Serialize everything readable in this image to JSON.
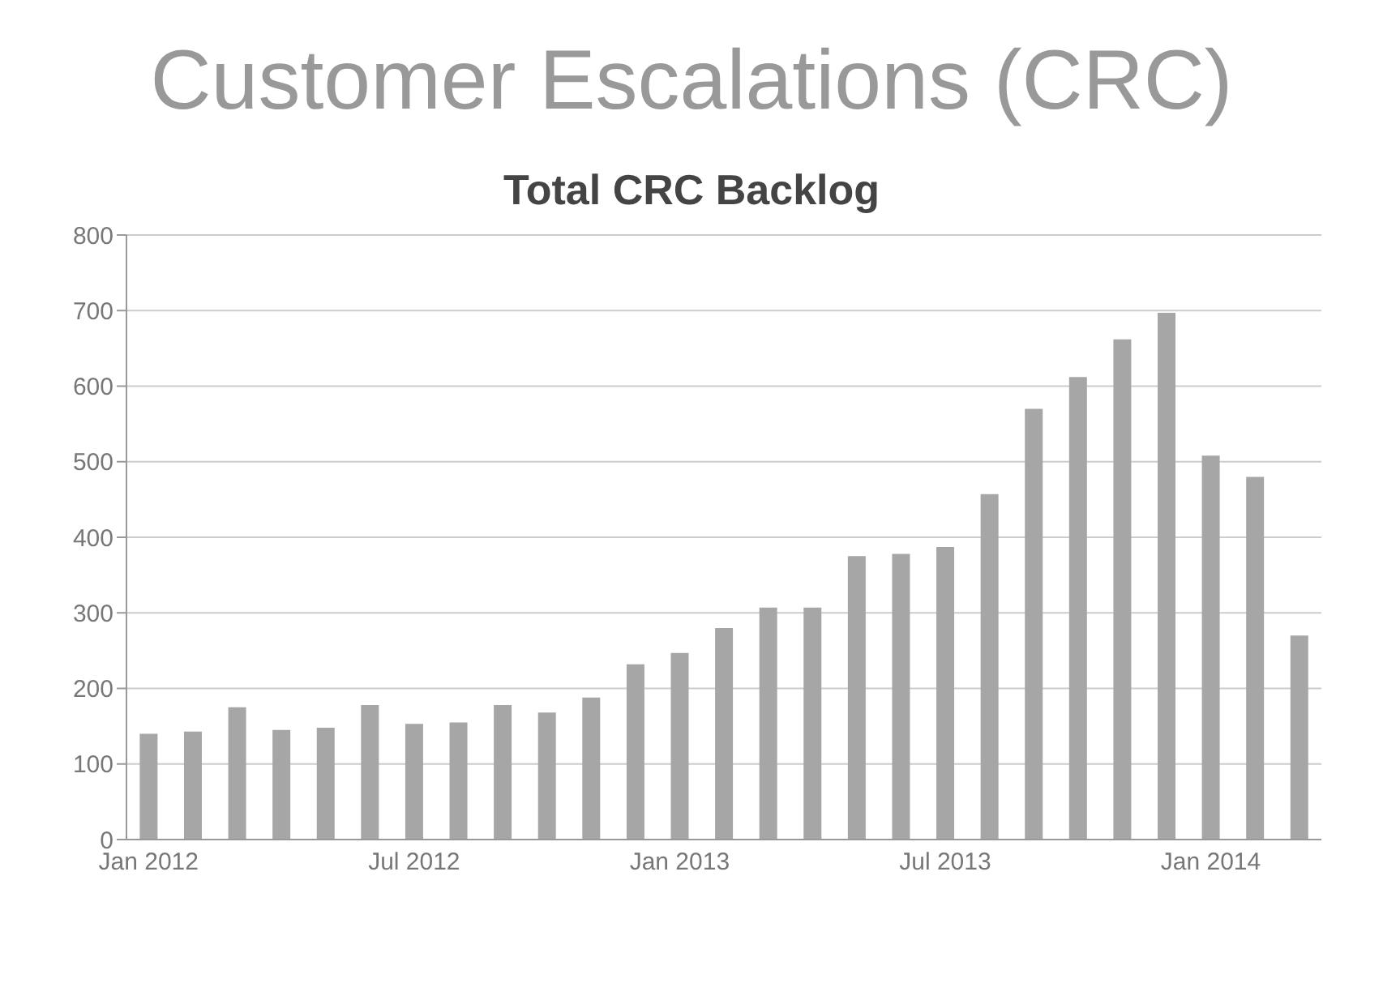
{
  "chart_data": {
    "type": "bar",
    "title": "Customer Escalations (CRC)",
    "subtitle": "Total CRC Backlog",
    "categories": [
      "Jan 2012",
      null,
      null,
      null,
      null,
      null,
      "Jul 2012",
      null,
      null,
      null,
      null,
      null,
      "Jan 2013",
      null,
      null,
      null,
      null,
      null,
      "Jul 2013",
      null,
      null,
      null,
      null,
      null,
      "Jan 2014",
      null,
      null
    ],
    "values": [
      140,
      143,
      175,
      145,
      148,
      178,
      153,
      155,
      178,
      168,
      188,
      232,
      247,
      280,
      307,
      307,
      375,
      378,
      387,
      457,
      570,
      612,
      662,
      697,
      508,
      480,
      270
    ],
    "color": "#a6a6a6",
    "ylim": [
      0,
      800
    ],
    "yticks": [
      0,
      100,
      200,
      300,
      400,
      500,
      600,
      700,
      800
    ],
    "grid": "y"
  }
}
